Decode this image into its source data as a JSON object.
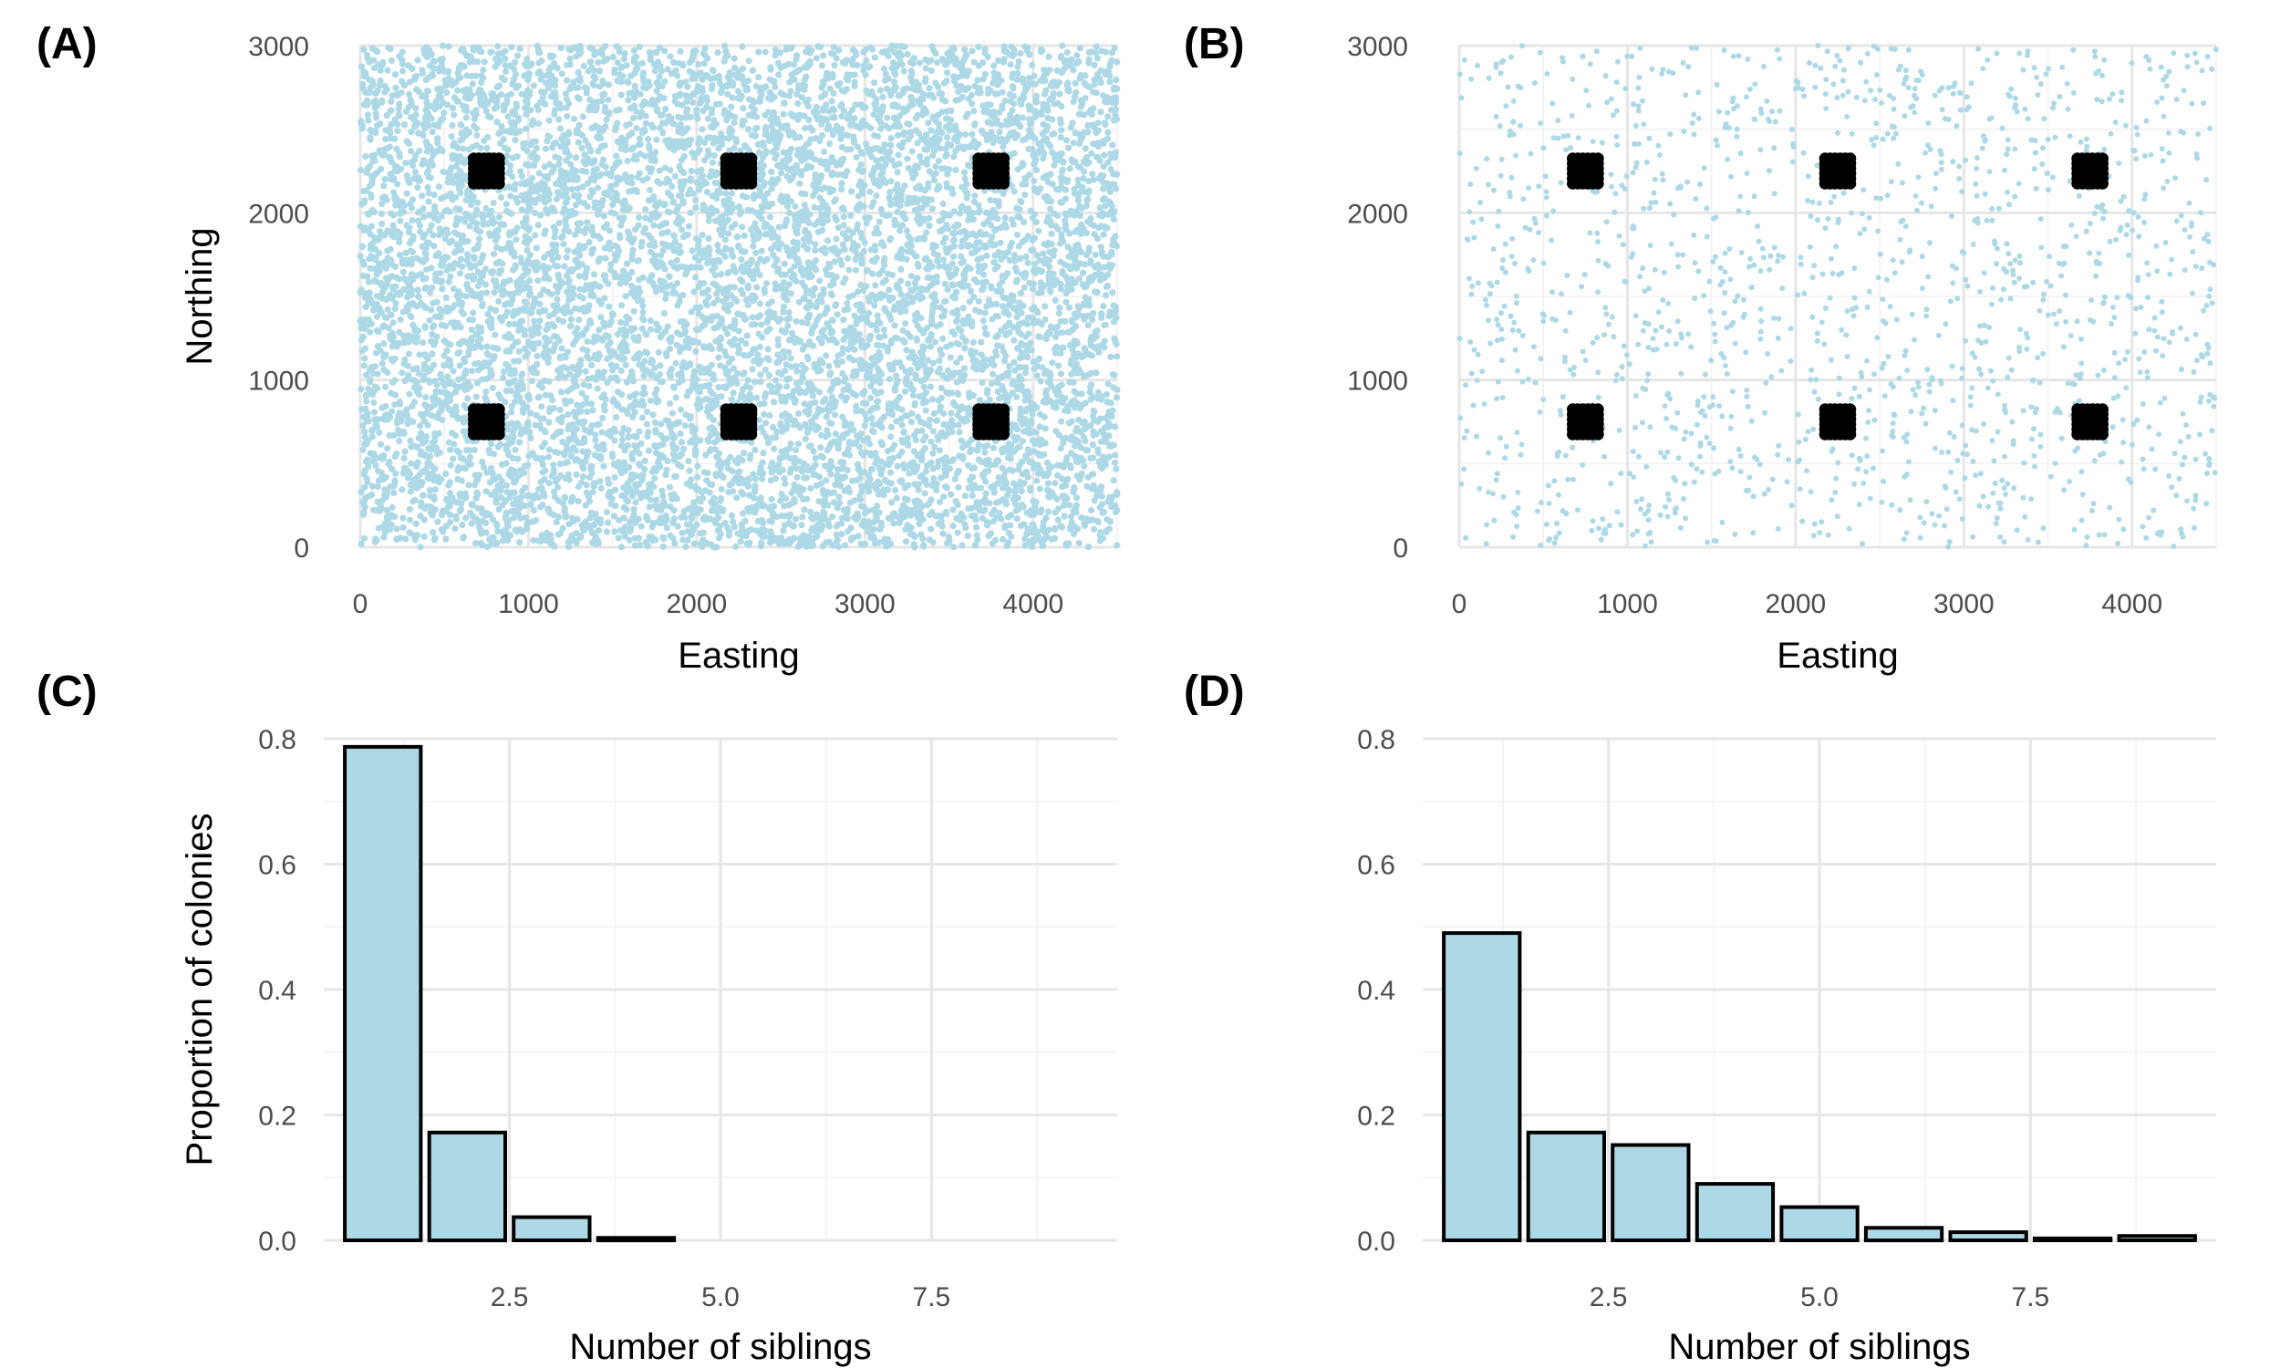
{
  "colors": {
    "background_points": "#add8e6",
    "sampled_points": "#000000",
    "bar_fill": "#add8e6",
    "bar_outline": "#000000",
    "grid": "#ebebeb",
    "tick_text": "#4d4d4d"
  },
  "chart_data": [
    {
      "type": "scatter",
      "panel": "(A)",
      "title": "",
      "xlabel": "Easting",
      "ylabel": "Northing",
      "xlim": [
        0,
        4500
      ],
      "ylim": [
        0,
        3000
      ],
      "xticks": [
        0,
        1000,
        2000,
        3000,
        4000
      ],
      "yticks": [
        0,
        1000,
        2000,
        3000
      ],
      "grid": true,
      "background_density": "dense",
      "background_point_count_approx": 9000,
      "sample_grids": {
        "centers_x": [
          750,
          2250,
          3750
        ],
        "centers_y": [
          750,
          2250
        ],
        "points_per_side": 6,
        "spacing": 30
      }
    },
    {
      "type": "scatter",
      "panel": "(B)",
      "title": "",
      "xlabel": "Easting",
      "ylabel": "",
      "xlim": [
        0,
        4500
      ],
      "ylim": [
        0,
        3000
      ],
      "xticks": [
        0,
        1000,
        2000,
        3000,
        4000
      ],
      "yticks": [
        0,
        1000,
        2000,
        3000
      ],
      "grid": true,
      "background_density": "sparse",
      "background_point_count_approx": 1500,
      "sample_grids": {
        "centers_x": [
          750,
          2250,
          3750
        ],
        "centers_y": [
          750,
          2250
        ],
        "points_per_side": 6,
        "spacing": 30
      }
    },
    {
      "type": "bar",
      "panel": "(C)",
      "title": "",
      "xlabel": "Number of siblings",
      "ylabel": "Proportion of colonies",
      "x": [
        1,
        2,
        3,
        4,
        5,
        6,
        7,
        8,
        9
      ],
      "values": [
        0.787,
        0.172,
        0.037,
        0.004,
        0.0,
        0.0,
        0.0,
        0.0,
        0.0
      ],
      "xlim": [
        0.3,
        9.7
      ],
      "ylim": [
        0,
        0.8
      ],
      "xticks": [
        2.5,
        5.0,
        7.5
      ],
      "yticks": [
        0.0,
        0.2,
        0.4,
        0.6,
        0.8
      ],
      "grid": true
    },
    {
      "type": "bar",
      "panel": "(D)",
      "title": "",
      "xlabel": "Number of siblings",
      "ylabel": "",
      "x": [
        1,
        2,
        3,
        4,
        5,
        6,
        7,
        8,
        9
      ],
      "values": [
        0.49,
        0.172,
        0.152,
        0.09,
        0.053,
        0.02,
        0.013,
        0.003,
        0.007
      ],
      "xlim": [
        0.3,
        9.7
      ],
      "ylim": [
        0,
        0.8
      ],
      "xticks": [
        2.5,
        5.0,
        7.5
      ],
      "yticks": [
        0.0,
        0.2,
        0.4,
        0.6,
        0.8
      ],
      "grid": true
    }
  ]
}
